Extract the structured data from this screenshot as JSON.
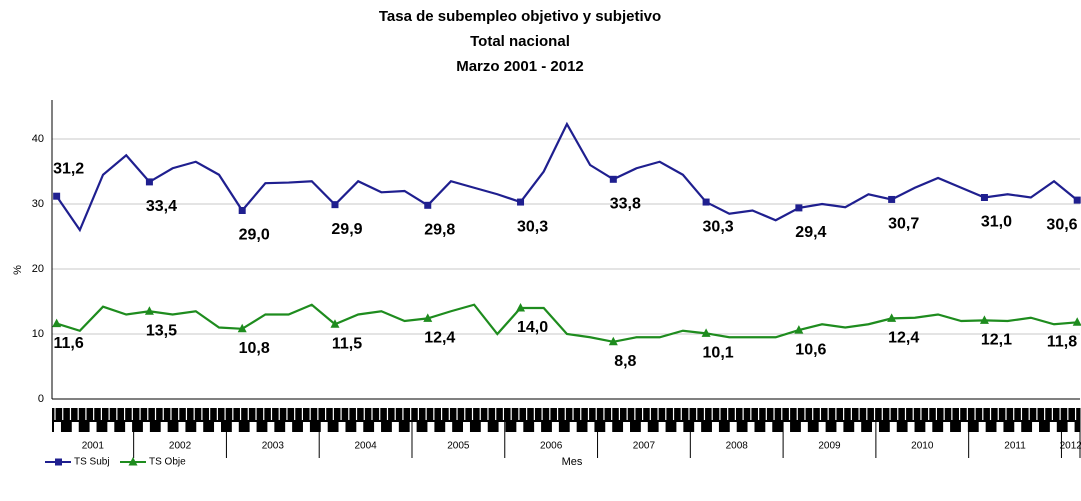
{
  "chart_data": {
    "type": "line",
    "title": "Tasa de subempleo objetivo y subjetivo",
    "subtitle": "Total nacional",
    "period": "Marzo 2001 - 2012",
    "x_label": "Mes",
    "y_label": "%",
    "x": [
      2001.17,
      2001.42,
      2001.67,
      2001.92,
      2002.17,
      2002.42,
      2002.67,
      2002.92,
      2003.17,
      2003.42,
      2003.67,
      2003.92,
      2004.17,
      2004.42,
      2004.67,
      2004.92,
      2005.17,
      2005.42,
      2005.67,
      2005.92,
      2006.17,
      2006.42,
      2006.67,
      2006.92,
      2007.17,
      2007.42,
      2007.67,
      2007.92,
      2008.17,
      2008.42,
      2008.67,
      2008.92,
      2009.17,
      2009.42,
      2009.67,
      2009.92,
      2010.17,
      2010.42,
      2010.67,
      2010.92,
      2011.17,
      2011.42,
      2011.67,
      2011.92,
      2012.17
    ],
    "xlim": [
      2001.12,
      2012.2
    ],
    "xticks": [
      2001,
      2002,
      2003,
      2004,
      2005,
      2006,
      2007,
      2008,
      2009,
      2010,
      2011,
      2012
    ],
    "ylim": [
      0,
      46
    ],
    "yticks": [
      0,
      10,
      20,
      30,
      40
    ],
    "grid": true,
    "legend": "bottom-left",
    "series": [
      {
        "name": "TS Subj",
        "color": "#1f1f8f",
        "values": [
          31.2,
          26,
          34.5,
          37.5,
          33.4,
          35.5,
          36.5,
          34.5,
          29.0,
          33.2,
          33.3,
          33.5,
          29.9,
          33.5,
          31.8,
          32,
          29.8,
          33.5,
          32.5,
          31.5,
          30.3,
          35,
          42.3,
          36,
          33.8,
          35.5,
          36.5,
          34.5,
          30.3,
          28.5,
          29,
          27.5,
          29.4,
          30,
          29.5,
          31.5,
          30.7,
          32.5,
          34,
          32.5,
          31.0,
          31.5,
          31,
          33.5,
          30.6
        ],
        "value_labels": [
          "31,2",
          null,
          null,
          null,
          "33,4",
          null,
          null,
          null,
          "29,0",
          null,
          null,
          null,
          "29,9",
          null,
          null,
          null,
          "29,8",
          null,
          null,
          null,
          "30,3",
          null,
          null,
          null,
          "33,8",
          null,
          null,
          null,
          "30,3",
          null,
          null,
          null,
          "29,4",
          null,
          null,
          null,
          "30,7",
          null,
          null,
          null,
          "31,0",
          null,
          null,
          null,
          "30,6"
        ]
      },
      {
        "name": "TS Obje",
        "color": "#1e8c1e",
        "values": [
          11.6,
          10.5,
          14.2,
          13,
          13.5,
          13,
          13.5,
          11,
          10.8,
          13,
          13,
          14.5,
          11.5,
          13,
          13.5,
          12,
          12.4,
          13.5,
          14.5,
          10,
          14.0,
          14,
          10,
          9.5,
          8.8,
          9.5,
          9.5,
          10.5,
          10.1,
          9.5,
          9.5,
          9.5,
          10.6,
          11.5,
          11,
          11.5,
          12.4,
          12.5,
          13,
          12,
          12.1,
          12,
          12.5,
          11.5,
          11.8
        ],
        "value_labels": [
          "11,6",
          null,
          null,
          null,
          "13,5",
          null,
          null,
          null,
          "10,8",
          null,
          null,
          null,
          "11,5",
          null,
          null,
          null,
          "12,4",
          null,
          null,
          null,
          "14,0",
          null,
          null,
          null,
          "8,8",
          null,
          null,
          null,
          "10,1",
          null,
          null,
          null,
          "10,6",
          null,
          null,
          null,
          "12,4",
          null,
          null,
          null,
          "12,1",
          null,
          null,
          null,
          "11,8"
        ]
      }
    ]
  }
}
